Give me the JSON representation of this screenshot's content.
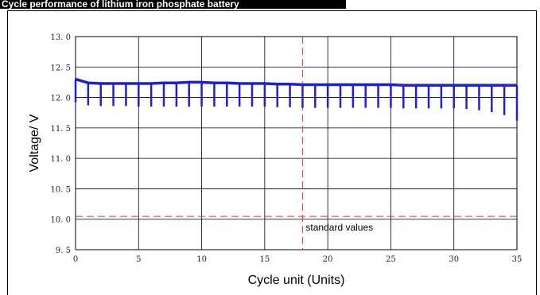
{
  "header": {
    "title": "Cycle performance of lithium iron phosphate battery"
  },
  "chart_data": {
    "type": "line",
    "title": "",
    "xlabel": "Cycle unit (Units)",
    "ylabel": "Voltage/ V",
    "xlim": [
      0,
      35
    ],
    "ylim": [
      9.5,
      13.0
    ],
    "x_ticks": [
      0,
      5,
      10,
      15,
      20,
      25,
      30,
      35
    ],
    "x_tick_labels": [
      "0",
      "5",
      "10",
      "15",
      "20",
      "25",
      "30",
      "35"
    ],
    "y_ticks": [
      9.5,
      10.0,
      10.5,
      11.0,
      11.5,
      12.0,
      12.5,
      13.0
    ],
    "y_tick_labels": [
      "9. 5",
      "10. 0",
      "10. 5",
      "11. 0",
      "11. 5",
      "12. 0",
      "12. 5",
      "13. 0"
    ],
    "grid": true,
    "series": [
      {
        "name": "",
        "color": "#1f1fd6",
        "x": [
          0,
          1,
          2,
          3,
          4,
          5,
          6,
          7,
          8,
          9,
          10,
          11,
          12,
          13,
          14,
          15,
          16,
          17,
          18,
          19,
          20,
          21,
          22,
          23,
          24,
          25,
          26,
          27,
          28,
          29,
          30,
          31,
          32,
          33,
          34,
          35
        ],
        "upper": [
          12.3,
          12.24,
          12.23,
          12.23,
          12.23,
          12.23,
          12.23,
          12.24,
          12.24,
          12.25,
          12.25,
          12.24,
          12.24,
          12.23,
          12.23,
          12.23,
          12.22,
          12.22,
          12.21,
          12.21,
          12.21,
          12.21,
          12.21,
          12.21,
          12.21,
          12.21,
          12.2,
          12.2,
          12.2,
          12.2,
          12.2,
          12.2,
          12.2,
          12.2,
          12.2,
          12.2
        ],
        "lower": [
          11.92,
          11.87,
          11.86,
          11.86,
          11.86,
          11.85,
          11.85,
          11.85,
          11.85,
          11.85,
          11.85,
          11.85,
          11.85,
          11.85,
          11.85,
          11.85,
          11.84,
          11.84,
          11.83,
          11.83,
          11.83,
          11.83,
          11.83,
          11.83,
          11.83,
          11.83,
          11.82,
          11.82,
          11.82,
          11.82,
          11.82,
          11.81,
          11.79,
          11.76,
          11.71,
          11.62
        ]
      }
    ],
    "reference_lines": [
      {
        "orientation": "vertical",
        "value": 18,
        "color": "#e33",
        "style": "dashed"
      },
      {
        "orientation": "horizontal",
        "value": 10.02,
        "color": "#e33",
        "style": "dashed",
        "label": "standard values"
      }
    ]
  }
}
